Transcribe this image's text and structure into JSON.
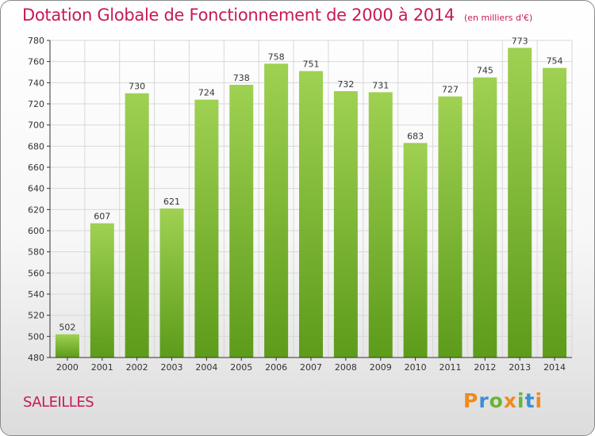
{
  "title": "Dotation Globale de Fonctionnement de 2000 à 2014",
  "subtitle": "(en milliers d'€)",
  "commune": "SALEILLES",
  "logo": {
    "letters": [
      "P",
      "r",
      "o",
      "x",
      "i",
      "t",
      "i"
    ],
    "colors": [
      "#f08a1c",
      "#3b8fd6",
      "#6bb536",
      "#f08a1c",
      "#6bb536",
      "#3b8fd6",
      "#f08a1c"
    ]
  },
  "colors": {
    "accent": "#c8185a",
    "bar_top": "#9fd152",
    "bar_bottom": "#5d9b1a",
    "grid": "#d8d8d8",
    "axis": "#333333"
  },
  "chart_data": {
    "type": "bar",
    "categories": [
      "2000",
      "2001",
      "2002",
      "2003",
      "2004",
      "2005",
      "2006",
      "2007",
      "2008",
      "2009",
      "2010",
      "2011",
      "2012",
      "2013",
      "2014"
    ],
    "values": [
      502,
      607,
      730,
      621,
      724,
      738,
      758,
      751,
      732,
      731,
      683,
      727,
      745,
      773,
      754
    ],
    "title": "Dotation Globale de Fonctionnement de 2000 à 2014",
    "ylim": [
      480,
      780
    ],
    "yticks": [
      480,
      500,
      520,
      540,
      560,
      580,
      600,
      620,
      640,
      660,
      680,
      700,
      720,
      740,
      760,
      780
    ],
    "grid": true,
    "data_labels": true
  }
}
